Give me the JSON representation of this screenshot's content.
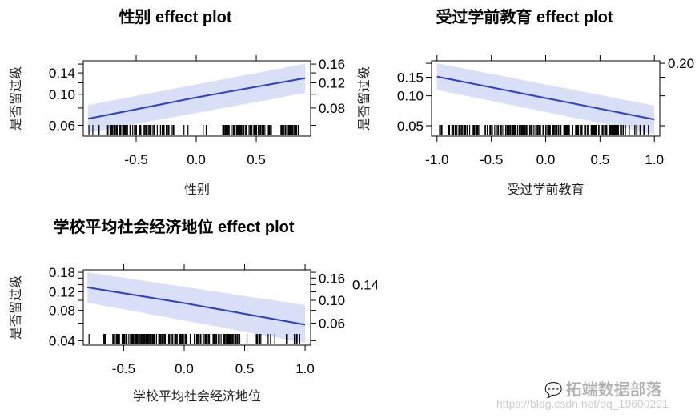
{
  "chart_data": [
    {
      "type": "line",
      "title": "性别 effect plot",
      "xlabel": "性别",
      "ylabel": "是否留过级",
      "y_scale": "logit",
      "xlim": [
        -0.94,
        0.953
      ],
      "ylim": [
        0.05,
        0.168
      ],
      "x_ticks": [
        -0.5,
        0.0,
        0.5
      ],
      "x_tick_labels": [
        "-0.5",
        "0.0",
        "0.5"
      ],
      "y_ticks": [
        0.06,
        0.08,
        0.1,
        0.12,
        0.14,
        0.16
      ],
      "y_tick_labels": [
        "0.06",
        "0.08",
        "0.10",
        "0.12",
        "0.14",
        "0.16"
      ],
      "fit": {
        "x": [
          -0.9,
          0.0,
          0.907
        ],
        "y": [
          0.067,
          0.095,
          0.129
        ]
      },
      "band": {
        "x": [
          -0.9,
          0.907
        ],
        "lower": [
          0.053,
          0.102
        ],
        "upper": [
          0.084,
          0.161
        ]
      },
      "rug_ranges": [
        [
          -0.9,
          -0.8,
          4
        ],
        [
          -0.75,
          -0.35,
          60
        ],
        [
          -0.33,
          -0.18,
          14
        ],
        [
          -0.12,
          0.12,
          4
        ],
        [
          0.22,
          0.62,
          60
        ],
        [
          0.62,
          0.87,
          25
        ]
      ],
      "colors": {
        "line": "#2b3fcc",
        "band": "#d9dff6",
        "rug": "#000000"
      },
      "grid": false
    },
    {
      "type": "line",
      "title": "受过学前教育 effect plot",
      "xlabel": "受过学前教育",
      "ylabel": "是否留过级",
      "y_scale": "logit",
      "xlim": [
        -1.05,
        1.05
      ],
      "ylim": [
        0.039,
        0.21
      ],
      "x_ticks": [
        -1.0,
        -0.5,
        0.0,
        0.5,
        1.0
      ],
      "x_tick_labels": [
        "-1.0",
        "-0.5",
        "0.0",
        "0.5",
        "1.0"
      ],
      "y_ticks": [
        0.05,
        0.1,
        0.15,
        0.2
      ],
      "y_tick_labels": [
        "0.05",
        "0.10",
        "0.15",
        "0.20"
      ],
      "fit": {
        "x": [
          -1.0,
          0.0,
          1.0
        ],
        "y": [
          0.152,
          0.095,
          0.058
        ]
      },
      "band": {
        "x": [
          -1.0,
          1.0
        ],
        "lower": [
          0.114,
          0.041
        ],
        "upper": [
          0.2,
          0.08
        ]
      },
      "rug_ranges": [
        [
          -0.98,
          0.97,
          220
        ]
      ],
      "colors": {
        "line": "#2b3fcc",
        "band": "#d9dff6",
        "rug": "#000000"
      },
      "grid": false
    },
    {
      "type": "line",
      "title": "学校平均社会经济地位 effect plot",
      "xlabel": "学校平均社会经济地位",
      "ylabel": "是否留过级",
      "y_scale": "logit",
      "xlim": [
        -0.834,
        1.046
      ],
      "ylim": [
        0.036,
        0.189
      ],
      "x_ticks": [
        -0.5,
        0.0,
        0.5,
        1.0
      ],
      "x_tick_labels": [
        "-0.5",
        "0.0",
        "0.5",
        "1.0"
      ],
      "y_ticks": [
        0.04,
        0.06,
        0.08,
        0.1,
        0.12,
        0.14,
        0.16,
        0.18
      ],
      "y_tick_labels": [
        "0.04",
        "0.06",
        "0.08",
        "0.10",
        "0.12",
        "0.14",
        "0.16",
        "0.18"
      ],
      "fit": {
        "x": [
          -0.8,
          0.0,
          1.0
        ],
        "y": [
          0.132,
          0.094,
          0.058
        ]
      },
      "band": {
        "x": [
          -0.8,
          1.0
        ],
        "lower": [
          0.095,
          0.038
        ],
        "upper": [
          0.18,
          0.09
        ]
      },
      "rug_ranges": [
        [
          -0.79,
          -0.78,
          1
        ],
        [
          -0.68,
          -0.64,
          4
        ],
        [
          -0.6,
          0.45,
          180
        ],
        [
          0.45,
          0.75,
          14
        ],
        [
          0.78,
          0.97,
          7
        ]
      ],
      "colors": {
        "line": "#2b3fcc",
        "band": "#d9dff6",
        "rug": "#000000"
      },
      "grid": false
    }
  ],
  "watermark": {
    "brand": "拓端数据部落",
    "url": "https://blog.csdn.net/qq_19600291",
    "icon": "wechat-icon"
  }
}
